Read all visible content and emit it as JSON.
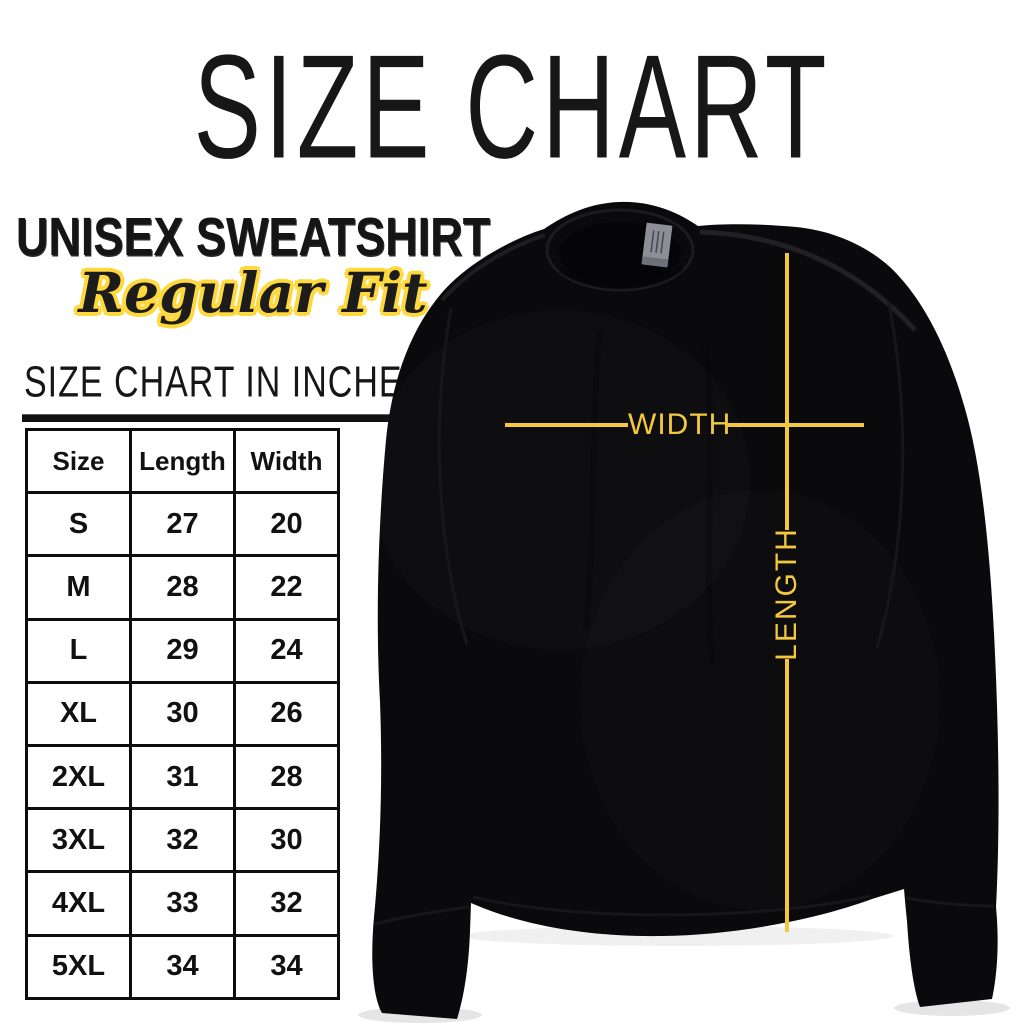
{
  "header": {
    "title": "SIZE CHART",
    "product": "UNISEX SWEATSHIRT",
    "fit": "Regular Fit",
    "table_heading": "SIZE CHART IN INCHES"
  },
  "size_table": {
    "columns": [
      "Size",
      "Length",
      "Width"
    ],
    "rows": [
      [
        "S",
        "27",
        "20"
      ],
      [
        "M",
        "28",
        "22"
      ],
      [
        "L",
        "29",
        "24"
      ],
      [
        "XL",
        "30",
        "26"
      ],
      [
        "2XL",
        "31",
        "28"
      ],
      [
        "3XL",
        "32",
        "30"
      ],
      [
        "4XL",
        "33",
        "32"
      ],
      [
        "5XL",
        "34",
        "34"
      ]
    ]
  },
  "measurement_diagram": {
    "width_label": "WIDTH",
    "length_label": "LENGTH"
  },
  "colors": {
    "accent_yellow": "#F4C83E",
    "script_outline_yellow": "#FFD83E",
    "ink_black": "#141414",
    "sweatshirt_black": "#0A0A0D",
    "neck_tag_gray": "#8E8E96",
    "background": "#FFFFFF"
  },
  "chart_data": {
    "type": "table",
    "title": "SIZE CHART",
    "subtitle": "UNISEX SWEATSHIRT - Regular Fit",
    "units": "inches",
    "columns": [
      "Size",
      "Length",
      "Width"
    ],
    "rows": [
      [
        "S",
        27,
        20
      ],
      [
        "M",
        28,
        22
      ],
      [
        "L",
        29,
        24
      ],
      [
        "XL",
        30,
        26
      ],
      [
        "2XL",
        31,
        28
      ],
      [
        "3XL",
        32,
        30
      ],
      [
        "4XL",
        33,
        32
      ],
      [
        "5XL",
        34,
        34
      ]
    ],
    "annotations": [
      "WIDTH",
      "LENGTH"
    ]
  }
}
